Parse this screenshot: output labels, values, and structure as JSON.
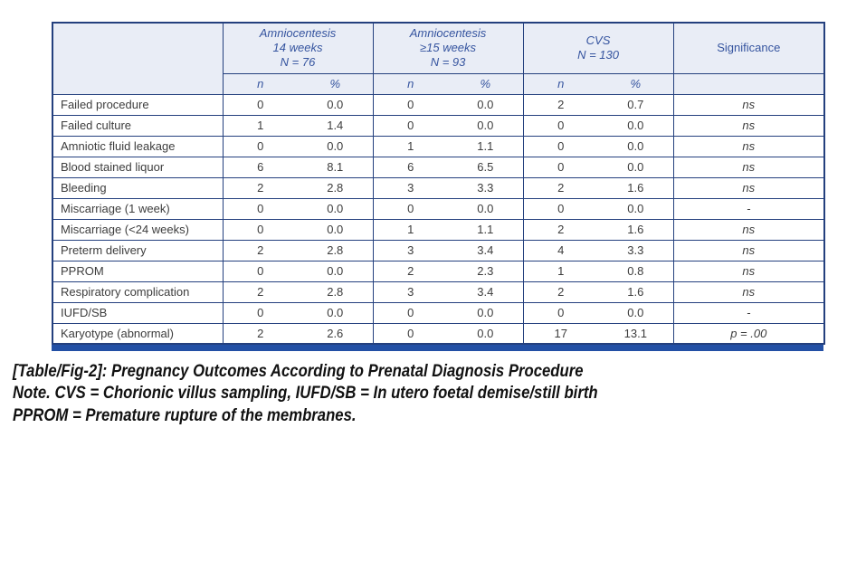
{
  "colors": {
    "header_bg": "#E9EDF6",
    "table_border": "#24407E",
    "bottom_bar": "#2350A5",
    "header_text": "#35549F",
    "body_text": "#3D3D3D"
  },
  "table": {
    "groups": [
      {
        "title": "Amniocentesis\n14 weeks\nN = 76"
      },
      {
        "title": "Amniocentesis\n≥15 weeks\nN = 93"
      },
      {
        "title": "CVS\nN = 130"
      }
    ],
    "significance_header": "Significance",
    "sub": {
      "n": "n",
      "pct": "%"
    },
    "rows": [
      {
        "label": "Failed procedure",
        "values": [
          "0",
          "0.0",
          "0",
          "0.0",
          "2",
          "0.7"
        ],
        "significance": "ns"
      },
      {
        "label": "Failed culture",
        "values": [
          "1",
          "1.4",
          "0",
          "0.0",
          "0",
          "0.0"
        ],
        "significance": "ns"
      },
      {
        "label": "Amniotic fluid leakage",
        "values": [
          "0",
          "0.0",
          "1",
          "1.1",
          "0",
          "0.0"
        ],
        "significance": "ns"
      },
      {
        "label": "Blood stained liquor",
        "values": [
          "6",
          "8.1",
          "6",
          "6.5",
          "0",
          "0.0"
        ],
        "significance": "ns"
      },
      {
        "label": "Bleeding",
        "values": [
          "2",
          "2.8",
          "3",
          "3.3",
          "2",
          "1.6"
        ],
        "significance": "ns"
      },
      {
        "label": "Miscarriage (1 week)",
        "values": [
          "0",
          "0.0",
          "0",
          "0.0",
          "0",
          "0.0"
        ],
        "significance": "-"
      },
      {
        "label": "Miscarriage (<24 weeks)",
        "values": [
          "0",
          "0.0",
          "1",
          "1.1",
          "2",
          "1.6"
        ],
        "significance": "ns"
      },
      {
        "label": "Preterm delivery",
        "values": [
          "2",
          "2.8",
          "3",
          "3.4",
          "4",
          "3.3"
        ],
        "significance": "ns"
      },
      {
        "label": "PPROM",
        "values": [
          "0",
          "0.0",
          "2",
          "2.3",
          "1",
          "0.8"
        ],
        "significance": "ns"
      },
      {
        "label": "Respiratory complication",
        "values": [
          "2",
          "2.8",
          "3",
          "3.4",
          "2",
          "1.6"
        ],
        "significance": "ns"
      },
      {
        "label": "IUFD/SB",
        "values": [
          "0",
          "0.0",
          "0",
          "0.0",
          "0",
          "0.0"
        ],
        "significance": "-"
      },
      {
        "label": "Karyotype (abnormal)",
        "values": [
          "2",
          "2.6",
          "0",
          "0.0",
          "17",
          "13.1"
        ],
        "significance": "p = .00"
      }
    ]
  },
  "caption": {
    "line1": "[Table/Fig-2]: Pregnancy Outcomes According to Prenatal Diagnosis Procedure",
    "line2": "Note. CVS = Chorionic villus sampling, IUFD/SB = In utero foetal demise/still birth",
    "line3": "PPROM = Premature rupture of the membranes."
  }
}
